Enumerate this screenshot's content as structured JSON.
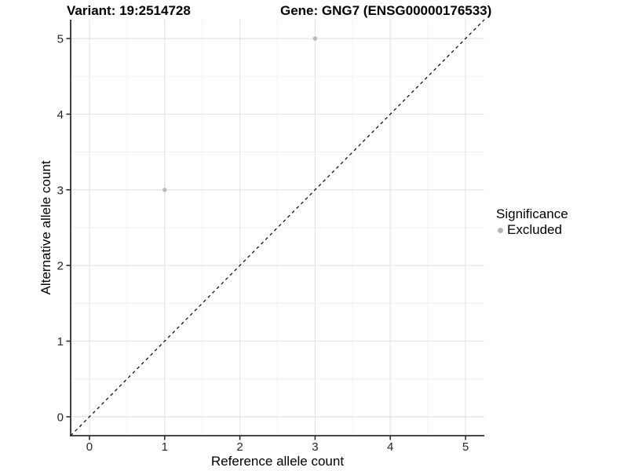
{
  "chart_data": {
    "type": "scatter",
    "title_left": "Variant: 19:2514728",
    "title_right": "Gene: GNG7 (ENSG00000176533)",
    "xlabel": "Reference allele count",
    "ylabel": "Alternative allele count",
    "xlim": [
      -0.25,
      5.25
    ],
    "ylim": [
      -0.25,
      5.25
    ],
    "xticks": [
      0,
      1,
      2,
      3,
      4,
      5
    ],
    "yticks": [
      0,
      1,
      2,
      3,
      4,
      5
    ],
    "minor_gridlines": [
      0.5,
      1.5,
      2.5,
      3.5,
      4.5
    ],
    "grid": "on",
    "series": [
      {
        "name": "Excluded",
        "color": "#b9b9b9",
        "points": [
          {
            "x": 1,
            "y": 3
          },
          {
            "x": 3,
            "y": 5
          }
        ]
      }
    ],
    "reference_line": {
      "type": "identity",
      "equation": "y = x",
      "style": "dashed",
      "color": "#000000"
    },
    "legend": {
      "title": "Significance",
      "position": "right",
      "items": [
        {
          "label": "Excluded",
          "color": "#b3b3b3",
          "marker": "circle"
        }
      ]
    }
  },
  "colors": {
    "background": "#ffffff",
    "grid_major": "#e4e4e4",
    "grid_minor": "#f1f1f1",
    "axis_line": "#2e2e2e",
    "tick_label": "#262626"
  }
}
